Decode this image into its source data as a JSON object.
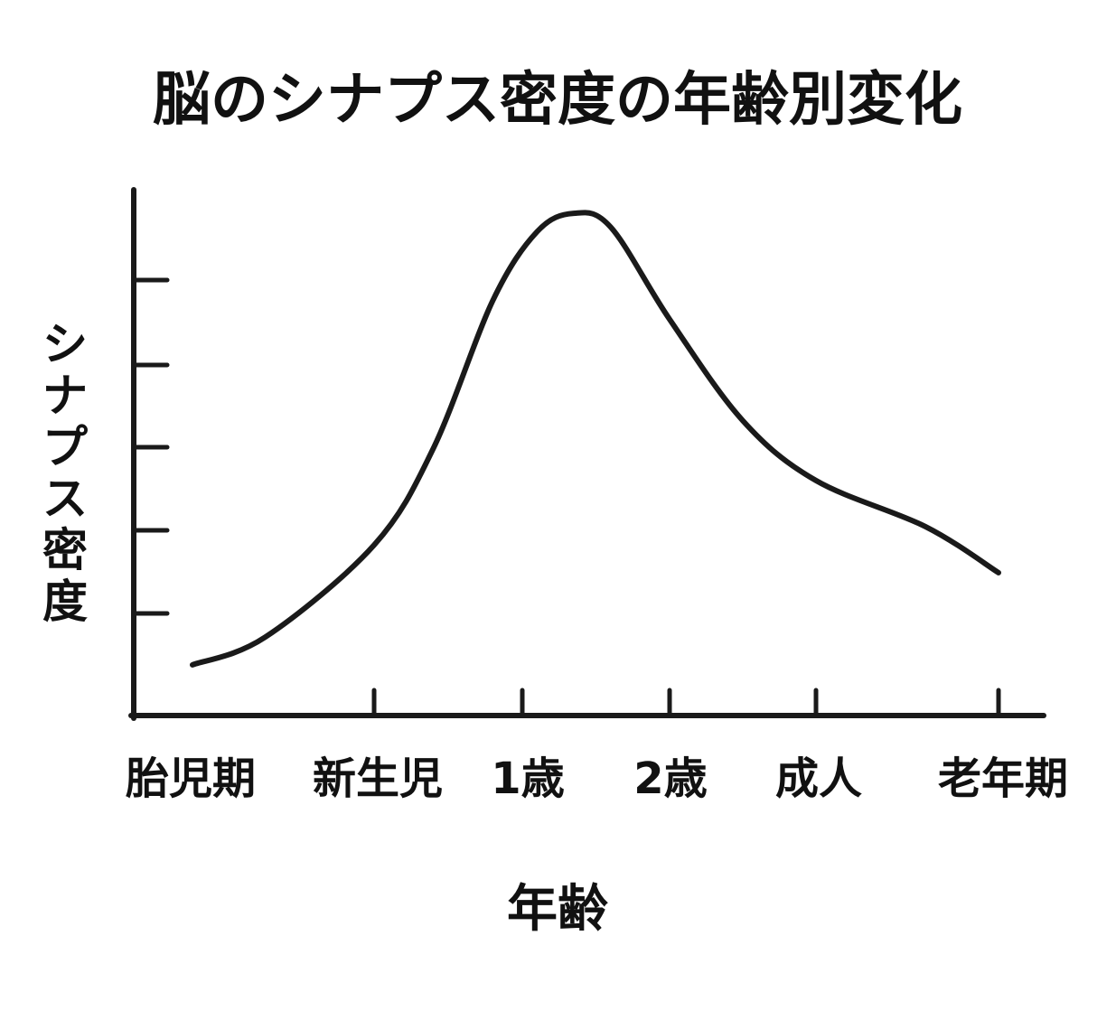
{
  "chart_data": {
    "type": "line",
    "title": "脳のシナプス密度の年齢別変化",
    "xlabel": "年齢",
    "ylabel": "シナプス密度",
    "categories": [
      "胎児期",
      "新生児",
      "1歳",
      "2歳",
      "成人",
      "老年期"
    ],
    "y_tick_count": 5,
    "ylim": [
      0,
      6
    ],
    "grid": false,
    "legend": "none",
    "line_color": "#1a1a1a",
    "series": [
      {
        "points": [
          {
            "x": 0.0,
            "y": 0.55
          },
          {
            "x": 0.4,
            "y": 0.85
          },
          {
            "x": 1.0,
            "y": 1.85
          },
          {
            "x": 1.4,
            "y": 2.9
          },
          {
            "x": 1.8,
            "y": 4.5
          },
          {
            "x": 2.1,
            "y": 5.25
          },
          {
            "x": 2.35,
            "y": 5.45
          },
          {
            "x": 2.6,
            "y": 5.3
          },
          {
            "x": 3.0,
            "y": 4.3
          },
          {
            "x": 3.5,
            "y": 3.2
          },
          {
            "x": 4.0,
            "y": 2.55
          },
          {
            "x": 4.6,
            "y": 2.05
          },
          {
            "x": 5.0,
            "y": 1.55
          }
        ]
      }
    ]
  }
}
